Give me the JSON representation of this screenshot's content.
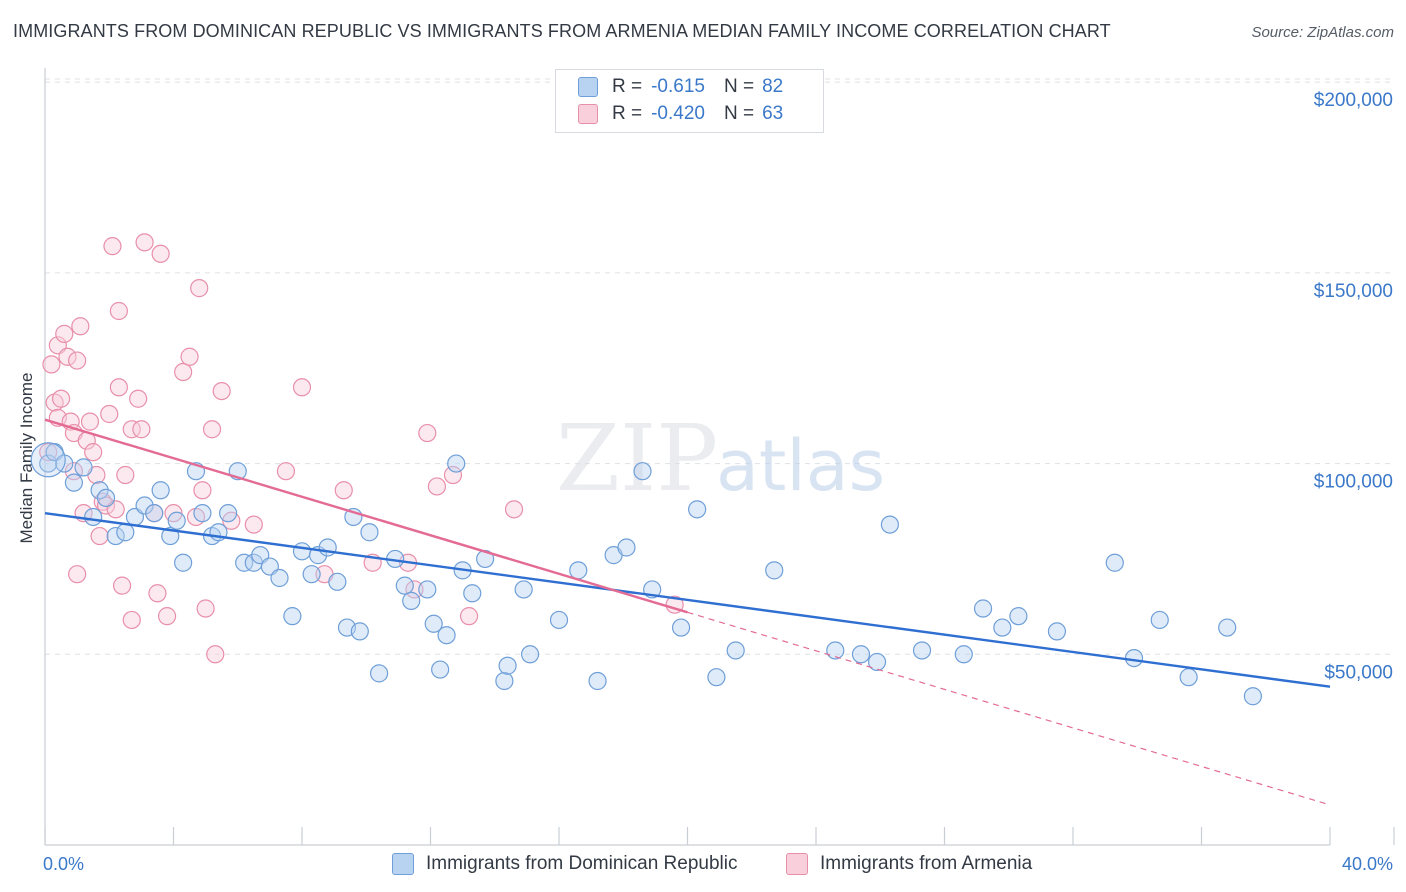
{
  "header": {
    "title": "IMMIGRANTS FROM DOMINICAN REPUBLIC VS IMMIGRANTS FROM ARMENIA MEDIAN FAMILY INCOME CORRELATION CHART",
    "source": "Source: ZipAtlas.com"
  },
  "watermark": {
    "zip": "ZIP",
    "atlas": "atlas"
  },
  "colors": {
    "blue_fill": "#b8d2f2",
    "blue_stroke": "#6f9fd8",
    "blue_line": "#2e6fd1",
    "pink_fill": "#f9cfdc",
    "pink_stroke": "#e88faa",
    "pink_line": "#e36b94",
    "axis_text": "#3a78c9",
    "grid": "#dde1e6"
  },
  "legend": {
    "blue": {
      "r_label": "R =",
      "r_value": "-0.615",
      "n_label": "N =",
      "n_value": "82"
    },
    "pink": {
      "r_label": "R =",
      "r_value": "-0.420",
      "n_label": "N =",
      "n_value": "63"
    }
  },
  "bottom_legend": {
    "blue_label": "Immigrants from Dominican Republic",
    "pink_label": "Immigrants from Armenia"
  },
  "chart_data": {
    "type": "scatter",
    "title": "IMMIGRANTS FROM DOMINICAN REPUBLIC VS IMMIGRANTS FROM ARMENIA MEDIAN FAMILY INCOME CORRELATION CHART",
    "xlabel": "",
    "ylabel": "Median Family Income",
    "xlim": [
      0,
      40
    ],
    "ylim": [
      0,
      210000
    ],
    "x_tick_labels": [
      "0.0%",
      "40.0%"
    ],
    "y_ticks": [
      50000,
      100000,
      150000,
      200000
    ],
    "y_tick_labels": [
      "$50,000",
      "$100,000",
      "$150,000",
      "$200,000"
    ],
    "legend_position": "top-center",
    "series": [
      {
        "name": "Immigrants from Dominican Republic",
        "color": "#6f9fd8",
        "R": -0.615,
        "N": 82,
        "trend": {
          "x": [
            0,
            40
          ],
          "y": [
            87000,
            41500
          ]
        },
        "points": [
          [
            0.1,
            100000
          ],
          [
            0.3,
            103000
          ],
          [
            0.6,
            100000
          ],
          [
            0.9,
            95000
          ],
          [
            1.2,
            99000
          ],
          [
            1.5,
            86000
          ],
          [
            1.7,
            93000
          ],
          [
            1.9,
            91000
          ],
          [
            2.2,
            81000
          ],
          [
            2.5,
            82000
          ],
          [
            2.8,
            86000
          ],
          [
            3.1,
            89000
          ],
          [
            3.4,
            87000
          ],
          [
            3.6,
            93000
          ],
          [
            3.9,
            81000
          ],
          [
            4.1,
            85000
          ],
          [
            4.3,
            74000
          ],
          [
            4.7,
            98000
          ],
          [
            4.9,
            87000
          ],
          [
            5.2,
            81000
          ],
          [
            5.4,
            82000
          ],
          [
            5.7,
            87000
          ],
          [
            6.0,
            98000
          ],
          [
            6.2,
            74000
          ],
          [
            6.5,
            74000
          ],
          [
            6.7,
            76000
          ],
          [
            7.0,
            73000
          ],
          [
            7.3,
            70000
          ],
          [
            7.7,
            60000
          ],
          [
            8.0,
            77000
          ],
          [
            8.3,
            71000
          ],
          [
            8.5,
            76000
          ],
          [
            8.8,
            78000
          ],
          [
            9.1,
            69000
          ],
          [
            9.4,
            57000
          ],
          [
            9.6,
            86000
          ],
          [
            9.8,
            56000
          ],
          [
            10.1,
            82000
          ],
          [
            10.4,
            45000
          ],
          [
            10.9,
            75000
          ],
          [
            11.2,
            68000
          ],
          [
            11.4,
            64000
          ],
          [
            11.9,
            67000
          ],
          [
            12.1,
            58000
          ],
          [
            12.3,
            46000
          ],
          [
            12.5,
            55000
          ],
          [
            12.8,
            100000
          ],
          [
            13.0,
            72000
          ],
          [
            13.3,
            66000
          ],
          [
            13.7,
            75000
          ],
          [
            14.3,
            43000
          ],
          [
            14.4,
            47000
          ],
          [
            14.9,
            67000
          ],
          [
            15.1,
            50000
          ],
          [
            16.0,
            59000
          ],
          [
            16.6,
            72000
          ],
          [
            17.2,
            43000
          ],
          [
            17.7,
            76000
          ],
          [
            18.1,
            78000
          ],
          [
            18.6,
            98000
          ],
          [
            18.9,
            67000
          ],
          [
            19.8,
            57000
          ],
          [
            20.3,
            88000
          ],
          [
            20.9,
            44000
          ],
          [
            21.5,
            51000
          ],
          [
            22.7,
            72000
          ],
          [
            24.6,
            51000
          ],
          [
            25.4,
            50000
          ],
          [
            25.9,
            48000
          ],
          [
            26.3,
            84000
          ],
          [
            27.3,
            51000
          ],
          [
            28.6,
            50000
          ],
          [
            29.2,
            62000
          ],
          [
            29.8,
            57000
          ],
          [
            30.3,
            60000
          ],
          [
            31.5,
            56000
          ],
          [
            33.3,
            74000
          ],
          [
            33.9,
            49000
          ],
          [
            34.7,
            59000
          ],
          [
            35.6,
            44000
          ],
          [
            36.8,
            57000
          ],
          [
            37.6,
            39000
          ]
        ]
      },
      {
        "name": "Immigrants from Armenia",
        "color": "#e88faa",
        "R": -0.42,
        "N": 63,
        "trend": {
          "x": [
            0,
            20
          ],
          "y": [
            111500,
            61000
          ]
        },
        "trend_extension": {
          "x": [
            20,
            40
          ],
          "y": [
            61000,
            10500
          ]
        },
        "points": [
          [
            0.1,
            103000
          ],
          [
            0.2,
            126000
          ],
          [
            0.3,
            116000
          ],
          [
            0.4,
            131000
          ],
          [
            0.4,
            112000
          ],
          [
            0.5,
            117000
          ],
          [
            0.6,
            134000
          ],
          [
            0.7,
            128000
          ],
          [
            0.8,
            111000
          ],
          [
            0.9,
            108000
          ],
          [
            0.9,
            98000
          ],
          [
            1.0,
            71000
          ],
          [
            1.0,
            127000
          ],
          [
            1.1,
            136000
          ],
          [
            1.2,
            87000
          ],
          [
            1.3,
            106000
          ],
          [
            1.4,
            111000
          ],
          [
            1.5,
            103000
          ],
          [
            1.6,
            97000
          ],
          [
            1.7,
            81000
          ],
          [
            1.8,
            90000
          ],
          [
            1.9,
            89000
          ],
          [
            2.0,
            113000
          ],
          [
            2.1,
            157000
          ],
          [
            2.2,
            88000
          ],
          [
            2.3,
            120000
          ],
          [
            2.3,
            140000
          ],
          [
            2.4,
            68000
          ],
          [
            2.5,
            97000
          ],
          [
            2.7,
            109000
          ],
          [
            2.7,
            59000
          ],
          [
            2.9,
            117000
          ],
          [
            3.0,
            109000
          ],
          [
            3.1,
            158000
          ],
          [
            3.4,
            87000
          ],
          [
            3.5,
            66000
          ],
          [
            3.6,
            155000
          ],
          [
            3.8,
            60000
          ],
          [
            4.0,
            87000
          ],
          [
            4.3,
            124000
          ],
          [
            4.5,
            128000
          ],
          [
            4.7,
            86000
          ],
          [
            4.8,
            146000
          ],
          [
            4.9,
            93000
          ],
          [
            5.0,
            62000
          ],
          [
            5.2,
            109000
          ],
          [
            5.3,
            50000
          ],
          [
            5.5,
            119000
          ],
          [
            5.8,
            85000
          ],
          [
            6.5,
            84000
          ],
          [
            7.5,
            98000
          ],
          [
            8.0,
            120000
          ],
          [
            8.7,
            71000
          ],
          [
            9.3,
            93000
          ],
          [
            10.2,
            74000
          ],
          [
            11.3,
            74000
          ],
          [
            11.5,
            67000
          ],
          [
            11.9,
            108000
          ],
          [
            12.2,
            94000
          ],
          [
            12.7,
            97000
          ],
          [
            13.2,
            60000
          ],
          [
            14.6,
            88000
          ],
          [
            19.6,
            63000
          ]
        ]
      }
    ]
  }
}
